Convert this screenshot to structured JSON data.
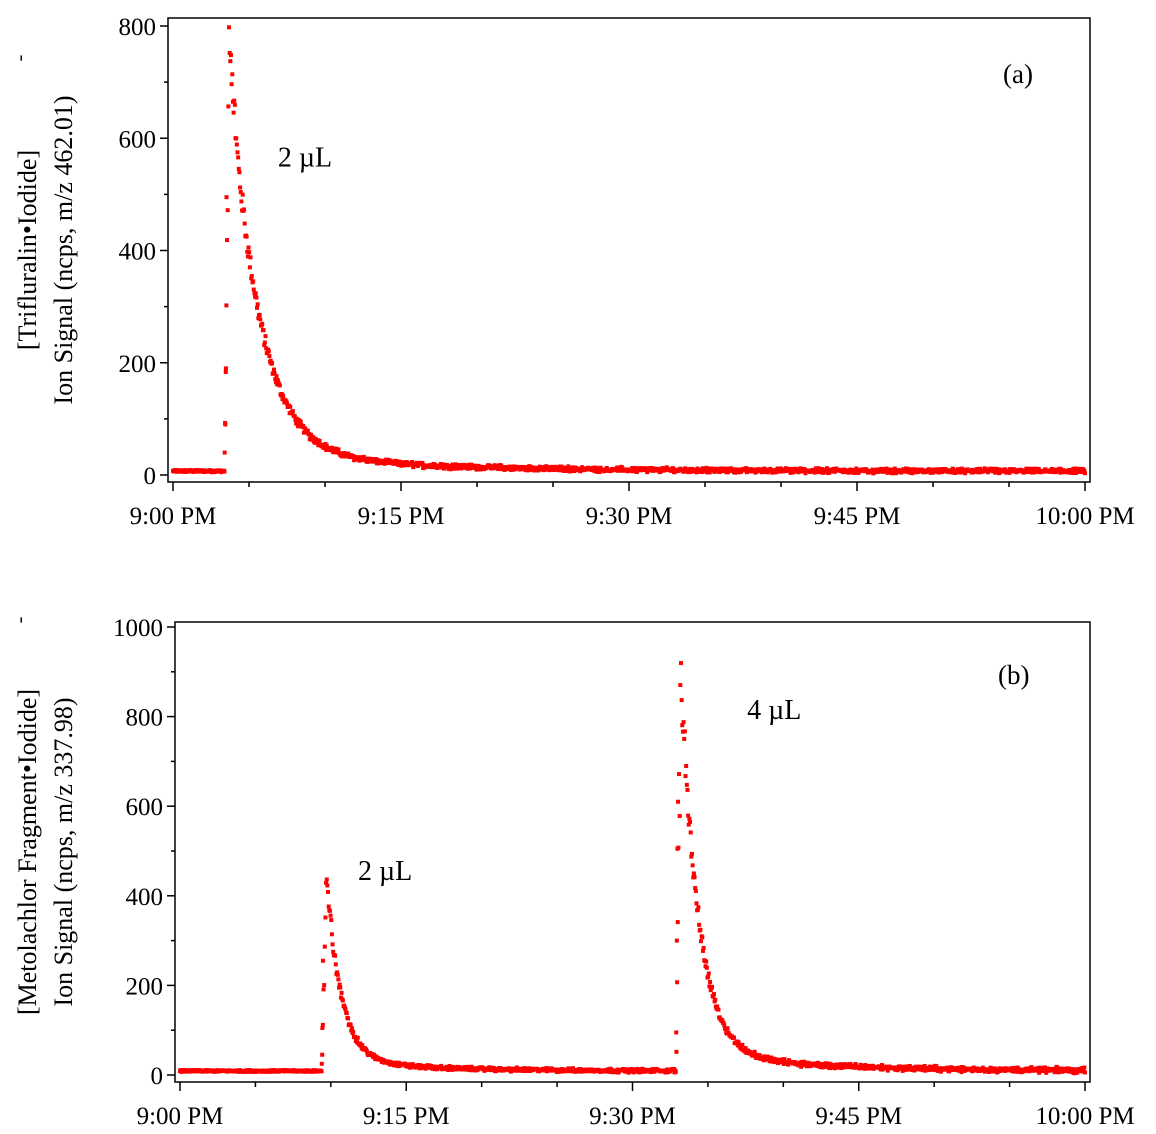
{
  "chart_data": [
    {
      "type": "scatter",
      "panel_label": "(a)",
      "ylabel_lines": [
        "[Trifluralin•Iodide]",
        "Ion Signal (ncps, m/z 462.01)"
      ],
      "ylabel_superscript": "-",
      "xlabel": "",
      "x_tick_labels": [
        "9:00 PM",
        "9:15 PM",
        "9:30 PM",
        "9:45 PM",
        "10:00 PM"
      ],
      "x_tick_minutes": [
        0,
        15,
        30,
        45,
        60
      ],
      "xlim_minutes": [
        0,
        60
      ],
      "y_ticks": [
        0,
        200,
        400,
        600,
        800
      ],
      "ylim": [
        0,
        800
      ],
      "color": "#ff0000",
      "grid": false,
      "annotations": [
        {
          "text": "2 µL",
          "x_minutes": 6.9,
          "y": 550
        }
      ],
      "series": [
        {
          "events": [
            {
              "start_minute": 3.4,
              "peak": 720,
              "peak_max": 765,
              "tau_minutes": 1.9,
              "tail": 35,
              "tail_tau": 10
            }
          ],
          "baseline": 7
        }
      ]
    },
    {
      "type": "scatter",
      "panel_label": "(b)",
      "ylabel_lines": [
        "[Metolachlor Fragment•Iodide]",
        "Ion Signal (ncps, m/z 337.98)"
      ],
      "ylabel_superscript": "-",
      "xlabel": "",
      "x_tick_labels": [
        "9:00 PM",
        "9:15 PM",
        "9:30 PM",
        "9:45 PM",
        "10:00 PM"
      ],
      "x_tick_minutes": [
        0,
        15,
        30,
        45,
        60
      ],
      "xlim_minutes": [
        0,
        60
      ],
      "y_ticks": [
        0,
        200,
        400,
        600,
        800,
        1000
      ],
      "ylim": [
        0,
        1000
      ],
      "color": "#ff0000",
      "grid": false,
      "annotations": [
        {
          "text": "2 µL",
          "x_minutes": 11.8,
          "y": 435
        },
        {
          "text": "4 µL",
          "x_minutes": 37.6,
          "y": 795
        }
      ],
      "series": [
        {
          "events": [
            {
              "start_minute": 9.4,
              "peak": 420,
              "peak_max": 430,
              "tau_minutes": 1.0,
              "tail": 25,
              "tail_tau": 6
            },
            {
              "start_minute": 32.9,
              "peak": 860,
              "peak_max": 895,
              "tau_minutes": 1.2,
              "tail": 40,
              "tail_tau": 8
            }
          ],
          "baseline": 9
        }
      ]
    }
  ]
}
